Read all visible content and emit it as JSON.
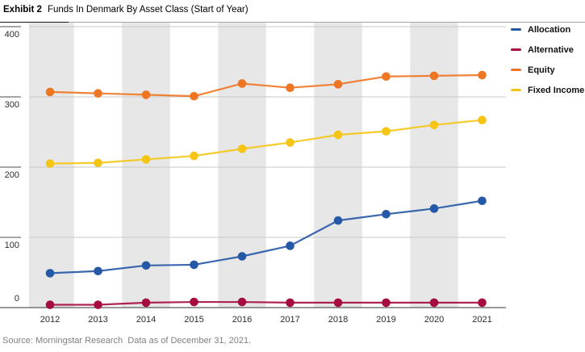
{
  "header": {
    "exhibit_label": "Exhibit 2",
    "title": "Funds In Denmark By Asset Class (Start of Year)"
  },
  "source_note": "Source: Morningstar Research  Data as of December 31, 2021.",
  "colors": {
    "band": "#e7e7e7",
    "gridline": "#c9c9c9",
    "axis": "#5c5c5c",
    "tick": "#4d4d4d"
  },
  "chart_data": {
    "type": "line",
    "title": "Funds In Denmark By Asset Class (Start of Year)",
    "x": [
      "2012",
      "2013",
      "2014",
      "2015",
      "2016",
      "2017",
      "2018",
      "2019",
      "2020",
      "2021"
    ],
    "series": [
      {
        "name": "Allocation",
        "color": "#2558a6",
        "values": [
          49,
          52,
          60,
          61,
          73,
          88,
          124,
          133,
          141,
          152
        ]
      },
      {
        "name": "Alternative",
        "color": "#a60d3f",
        "values": [
          4,
          4,
          7,
          8,
          8,
          7,
          7,
          7,
          7,
          7
        ]
      },
      {
        "name": "Equity",
        "color": "#ee7523",
        "values": [
          307,
          305,
          303,
          301,
          319,
          313,
          318,
          329,
          330,
          331
        ]
      },
      {
        "name": "Fixed Income",
        "color": "#f5c515",
        "values": [
          205,
          206,
          211,
          216,
          226,
          235,
          246,
          251,
          260,
          267
        ]
      }
    ],
    "yticks": [
      0,
      100,
      200,
      300,
      400
    ],
    "ylim": [
      0,
      400
    ],
    "xlabel": "",
    "ylabel": "",
    "grid": true,
    "banded_columns": "even-years",
    "legend_position": "right"
  }
}
